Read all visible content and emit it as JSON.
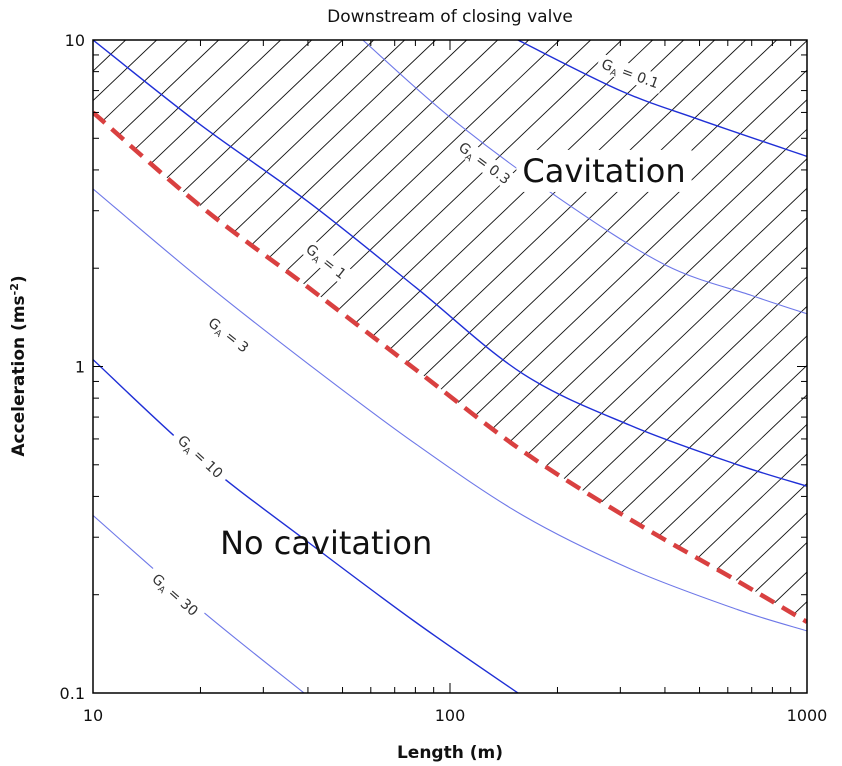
{
  "chart_data": {
    "type": "line",
    "title": "Downstream of closing valve",
    "xlabel": "Length (m)",
    "ylabel": "Acceleration (ms-2)",
    "xscale": "log",
    "yscale": "log",
    "xlim": [
      10,
      1000
    ],
    "ylim": [
      0.1,
      10
    ],
    "x_ticks": [
      {
        "value": 10,
        "label": "10"
      },
      {
        "value": 100,
        "label": "100"
      },
      {
        "value": 1000,
        "label": "1000"
      }
    ],
    "y_ticks": [
      {
        "value": 0.1,
        "label": "0.1"
      },
      {
        "value": 1,
        "label": "1"
      },
      {
        "value": 10,
        "label": "10"
      }
    ],
    "grid": false,
    "regions": [
      {
        "label": "Cavitation",
        "x": 270,
        "y": 4.0,
        "hatched": true
      },
      {
        "label": "No cavitation",
        "x": 45,
        "y": 0.29,
        "hatched": false
      }
    ],
    "series": [
      {
        "name": "G_A = 0.1",
        "label_main": "G",
        "label_sub": "A",
        "label_value": " = 0.1",
        "color": "#1f2fd6",
        "weight": "heavy",
        "x": [
          155,
          300,
          500,
          1000
        ],
        "y": [
          10,
          7.0,
          5.7,
          4.4
        ],
        "label_x": 320,
        "label_y": 7.9
      },
      {
        "name": "G_A = 0.3",
        "label_main": "G",
        "label_sub": "A",
        "label_value": " = 0.3",
        "color": "#6e78e8",
        "weight": "light",
        "x": [
          57,
          100,
          200,
          400,
          700,
          1000
        ],
        "y": [
          10,
          5.8,
          3.3,
          2.05,
          1.65,
          1.45
        ],
        "label_x": 125,
        "label_y": 4.2
      },
      {
        "name": "G_A = 1",
        "label_main": "G",
        "label_sub": "A",
        "label_value": " = 1",
        "color": "#1f2fd6",
        "weight": "heavy",
        "x": [
          10,
          20,
          40,
          80,
          160,
          320,
          640,
          1000
        ],
        "y": [
          10,
          5.5,
          3.2,
          1.75,
          0.95,
          0.66,
          0.5,
          0.43
        ],
        "label_x": 45,
        "label_y": 2.1
      },
      {
        "name": "G_A = 3",
        "label_main": "G",
        "label_sub": "A",
        "label_value": " = 3",
        "color": "#6e78e8",
        "weight": "light",
        "x": [
          10,
          20,
          40,
          80,
          160,
          320,
          640,
          1000
        ],
        "y": [
          3.5,
          1.85,
          1.02,
          0.58,
          0.35,
          0.24,
          0.18,
          0.155
        ],
        "label_x": 24,
        "label_y": 1.25
      },
      {
        "name": "G_A = 10",
        "label_main": "G",
        "label_sub": "A",
        "label_value": " = 10",
        "color": "#1f2fd6",
        "weight": "heavy",
        "x": [
          10,
          20,
          40,
          80,
          155
        ],
        "y": [
          1.05,
          0.52,
          0.29,
          0.165,
          0.1
        ],
        "label_x": 20,
        "label_y": 0.53
      },
      {
        "name": "G_A = 30",
        "label_main": "G",
        "label_sub": "A",
        "label_value": " = 30",
        "color": "#6e78e8",
        "weight": "light",
        "x": [
          10,
          20,
          39
        ],
        "y": [
          0.35,
          0.18,
          0.1
        ],
        "label_x": 17,
        "label_y": 0.2
      },
      {
        "name": "cavitation boundary",
        "color": "#d94040",
        "weight": "dashed",
        "x": [
          10,
          20,
          40,
          80,
          160,
          320,
          640,
          1000
        ],
        "y": [
          6.0,
          3.1,
          1.75,
          0.98,
          0.55,
          0.34,
          0.22,
          0.165
        ]
      }
    ]
  }
}
